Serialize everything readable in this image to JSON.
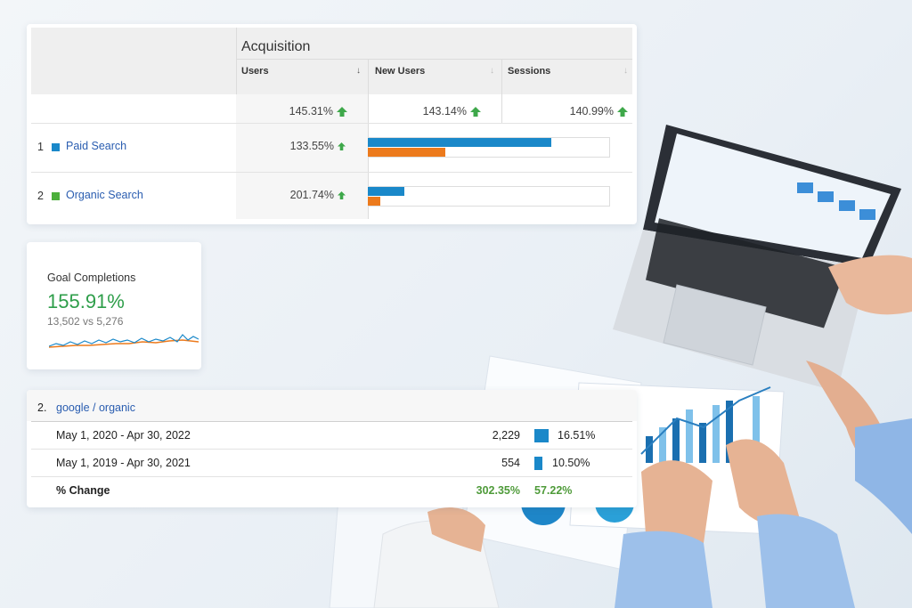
{
  "acquisition": {
    "title": "Acquisition",
    "columns": [
      "Users",
      "New Users",
      "Sessions"
    ],
    "totals": [
      "145.31%",
      "143.14%",
      "140.99%"
    ],
    "rows": [
      {
        "rank": "1",
        "name": "Paid Search",
        "users": "133.55%"
      },
      {
        "rank": "2",
        "name": "Organic Search",
        "users": "201.74%"
      }
    ]
  },
  "goal": {
    "title": "Goal Completions",
    "value": "155.91%",
    "comparison": "13,502 vs 5,276"
  },
  "source": {
    "rank": "2.",
    "name": "google / organic",
    "rows": [
      {
        "label": "May 1, 2020 - Apr 30, 2022",
        "value": "2,229",
        "percent": "16.51%"
      },
      {
        "label": "May 1, 2019 - Apr 30, 2021",
        "value": "554",
        "percent": "10.50%"
      }
    ],
    "change": {
      "label": "% Change",
      "value": "302.35%",
      "percent": "57.22%"
    }
  }
}
